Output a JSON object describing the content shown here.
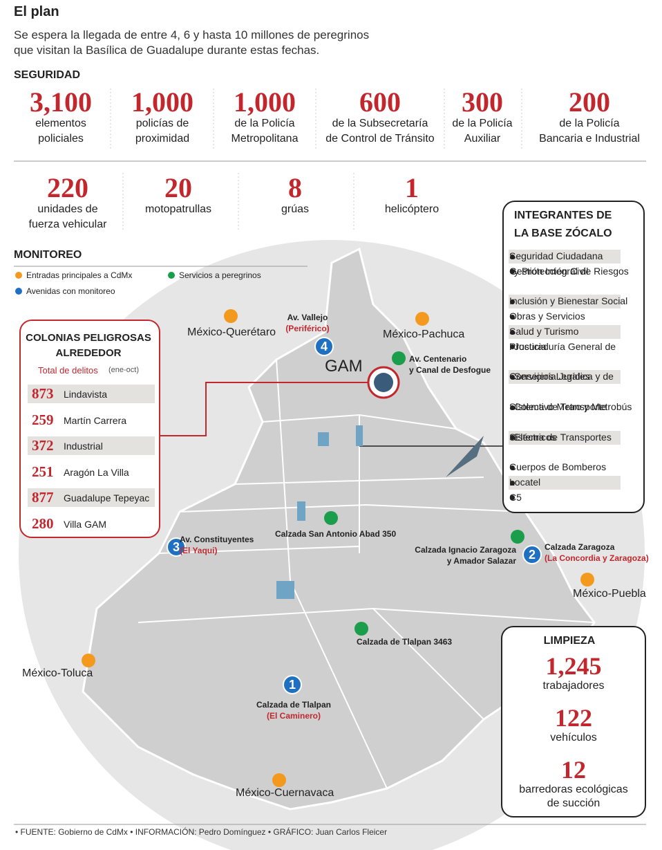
{
  "header": {
    "title": "El plan",
    "subtitle": [
      "Se espera la llegada de entre 4, 6 y hasta 10 millones de peregrinos",
      "que visitan la Basílica de Guadalupe durante estas fechas."
    ]
  },
  "seguridad": {
    "heading": "SEGURIDAD",
    "items": [
      {
        "value": "3,100",
        "lines": [
          "elementos",
          "policiales"
        ]
      },
      {
        "value": "1,000",
        "lines": [
          "policías de",
          "proximidad"
        ]
      },
      {
        "value": "1,000",
        "lines": [
          "de la Policía",
          "Metropolitana"
        ]
      },
      {
        "value": "600",
        "lines": [
          "de la Subsecretaría",
          "de Control de Tránsito"
        ]
      },
      {
        "value": "300",
        "lines": [
          "de la Policía",
          "Auxiliar"
        ]
      },
      {
        "value": "200",
        "lines": [
          "de la Policía",
          "Bancaria e Industrial"
        ]
      }
    ],
    "vehicles": [
      {
        "value": "220",
        "lines": [
          "unidades de",
          "fuerza vehicular"
        ]
      },
      {
        "value": "20",
        "lines": [
          "motopatrullas"
        ]
      },
      {
        "value": "8",
        "lines": [
          "grúas"
        ]
      },
      {
        "value": "1",
        "lines": [
          "helicóptero"
        ]
      }
    ]
  },
  "monitoreo": {
    "heading": "MONITOREO",
    "legend": [
      "Entradas principales a CdMx",
      "Servicios a peregrinos",
      "Avenidas con monitoreo"
    ]
  },
  "colonias": {
    "title": [
      "COLONIAS PELIGROSAS",
      "ALREDEDOR"
    ],
    "subtitle": "Total de delitos",
    "note": "(ene-oct)",
    "rows": [
      {
        "count": "873",
        "name": "Lindavista"
      },
      {
        "count": "259",
        "name": "Martín Carrera"
      },
      {
        "count": "372",
        "name": "Industrial"
      },
      {
        "count": "251",
        "name": "Aragón La Villa"
      },
      {
        "count": "877",
        "name": "Guadalupe Tepeyac"
      },
      {
        "count": "280",
        "name": "Villa GAM"
      }
    ]
  },
  "integrantes": {
    "title": [
      "INTEGRANTES DE",
      "LA BASE ZÓCALO"
    ],
    "items": [
      [
        "Seguridad Ciudadana"
      ],
      [
        "Gestión Integral de Riesgos",
        "y Protección Civil"
      ],
      [
        "Inclusión y Bienestar Social"
      ],
      [
        "Obras y Servicios"
      ],
      [
        "Salud y Turismo"
      ],
      [
        "Procuraduría General de",
        "Justicia"
      ],
      [
        "Consejería Jurídica y de",
        "Servicios Legales"
      ],
      [
        "Sistema de Transporte",
        "Colectivo Metro y Metrobús"
      ],
      [
        "Sistema de Transportes",
        "Eléctricos"
      ],
      [
        "Cuerpos de Bomberos"
      ],
      [
        "Locatel"
      ],
      [
        "C5"
      ]
    ]
  },
  "limpieza": {
    "title": "LIMPIEZA",
    "items": [
      {
        "value": "1,245",
        "lines": [
          "trabajadores"
        ]
      },
      {
        "value": "122",
        "lines": [
          "vehículos"
        ]
      },
      {
        "value": "12",
        "lines": [
          "barredoras ecológicas",
          "de succión"
        ]
      }
    ]
  },
  "map": {
    "gam": "GAM",
    "entradas": [
      "México-Querétaro",
      "México-Pachuca",
      "México-Puebla",
      "México-Toluca",
      "México-Cuernavaca"
    ],
    "servicios": [
      [
        "Av. Centenario",
        "y Canal de Desfogue"
      ],
      [
        "Calzada San Antonio Abad 350"
      ],
      [
        "Calzada Ignacio Zaragoza",
        "y Amador Salazar"
      ],
      [
        "Calzada de Tlalpan 3463"
      ]
    ],
    "avenidas": [
      {
        "number": "4",
        "name": "Av. Vallejo",
        "detail": "(Periférico)"
      },
      {
        "number": "3",
        "name": "Av. Constituyentes",
        "detail": "(El Yaqui)"
      },
      {
        "number": "2",
        "name": "Calzada Zaragoza",
        "detail": "(La Concordia y Zaragoza)"
      },
      {
        "number": "1",
        "name": "Calzada de Tlalpan",
        "detail": "(El Caminero)"
      }
    ]
  },
  "footer": "• FUENTE: Gobierno de CdMx • INFORMACIÓN: Pedro Domínguez • GRÁFICO: Juan Carlos Fleicer"
}
